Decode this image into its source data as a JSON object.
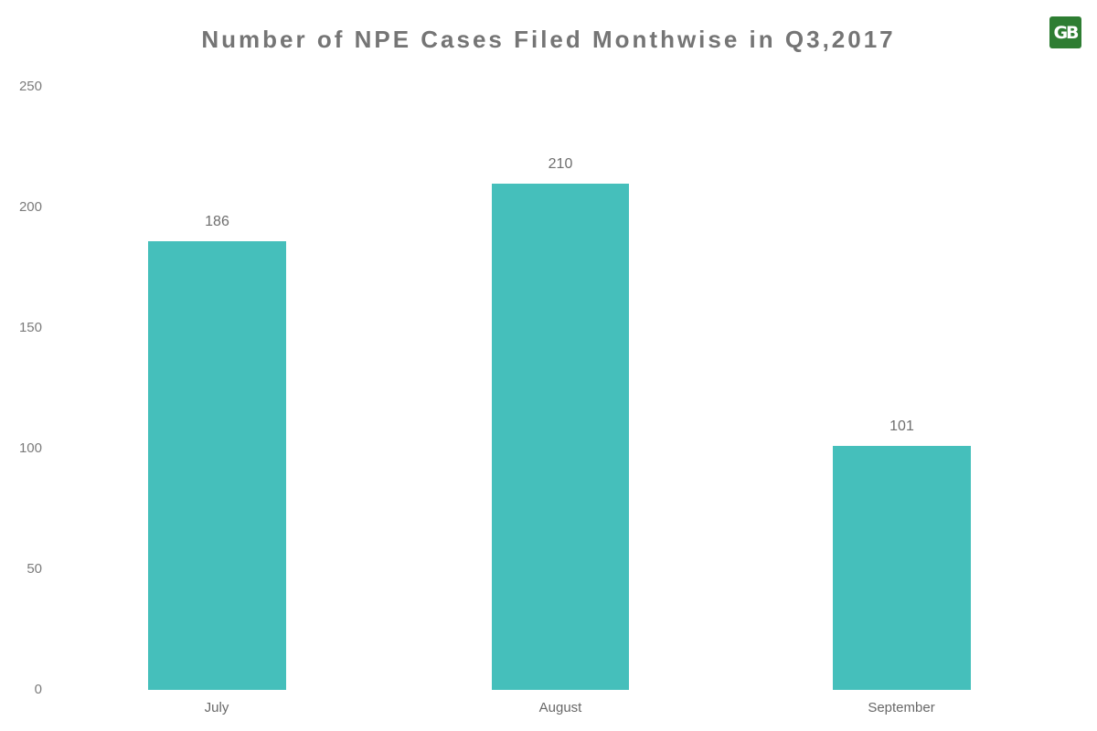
{
  "title": "Number of NPE Cases Filed Monthwise in Q3,2017",
  "logo": {
    "text": "GB",
    "bg_color": "#2e7d32"
  },
  "chart_data": {
    "type": "bar",
    "title": "Number of NPE Cases Filed Monthwise in Q3,2017",
    "categories": [
      "July",
      "August",
      "September"
    ],
    "values": [
      186,
      210,
      101
    ],
    "value_labels": [
      "186",
      "210",
      "101"
    ],
    "xlabel": "",
    "ylabel": "",
    "ylim": [
      0,
      250
    ],
    "yticks": [
      "250",
      "200",
      "150",
      "100",
      "50",
      "0"
    ],
    "bar_color": "#45bfbb",
    "label_color": "#6e6e6e",
    "grid": false,
    "legend": false
  }
}
